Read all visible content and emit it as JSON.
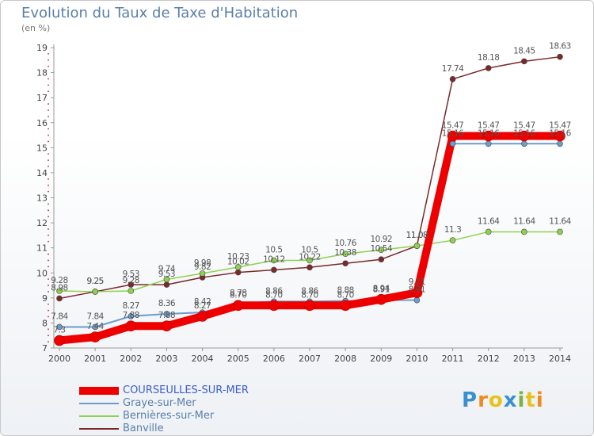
{
  "title": "Evolution du Taux de Taxe d'Habitation",
  "subtitle": "(en %)",
  "logo": {
    "text": "Proxiti",
    "letters": [
      "P",
      "r",
      "o",
      "x",
      "i",
      "t",
      "i"
    ],
    "colors": [
      "#3a8fd0",
      "#f08a1c",
      "#e8c21a",
      "#3a8fd0",
      "#7ab342",
      "#e8c21a",
      "#f08a1c"
    ]
  },
  "chart_data": {
    "type": "line",
    "x": [
      "2000",
      "2001",
      "2002",
      "2003",
      "2004",
      "2005",
      "2006",
      "2007",
      "2008",
      "2009",
      "2010",
      "2011",
      "2012",
      "2013",
      "2014"
    ],
    "ylim": [
      7,
      19
    ],
    "yticks": [
      7,
      8,
      9,
      10,
      11,
      12,
      13,
      14,
      15,
      16,
      17,
      18,
      19
    ],
    "grid": false,
    "legend_position": "bottom-left",
    "series": [
      {
        "name": "COURSEULLES-SUR-MER",
        "color": "#ee0000",
        "values": [
          7.3,
          7.44,
          7.88,
          7.88,
          8.27,
          8.7,
          8.7,
          8.7,
          8.7,
          8.94,
          9.21,
          15.47,
          15.47,
          15.47,
          15.47
        ],
        "labels": [
          "7.3",
          "7.44",
          "7.88",
          "7.88",
          "8.27",
          "8.70",
          "8.70",
          "8.70",
          "8.70",
          "8.94",
          "9.21",
          "15.47",
          "15.47",
          "15.47",
          "15.47"
        ]
      },
      {
        "name": "Graye-sur-Mer",
        "color": "#6a9dcb",
        "values": [
          7.84,
          7.84,
          8.27,
          8.36,
          8.42,
          8.78,
          8.86,
          8.86,
          8.88,
          8.91,
          8.91,
          15.16,
          15.16,
          15.16,
          15.16
        ],
        "labels": [
          "7.84",
          "7.84",
          "8.27",
          "8.36",
          "8.42",
          "8.78",
          "8.86",
          "8.86",
          "8.88",
          "8.91",
          "8.91",
          "15.16",
          "15.16",
          "15.16",
          "15.16"
        ]
      },
      {
        "name": "Bernières-sur-Mer",
        "color": "#8fd14f",
        "values": [
          9.28,
          9.25,
          9.28,
          9.74,
          9.98,
          10.23,
          10.5,
          10.5,
          10.76,
          10.92,
          11.08,
          11.3,
          11.64,
          11.64,
          11.64
        ],
        "labels": [
          "9.28",
          "9.25",
          "9.28",
          "9.74",
          "9.98",
          "10.23",
          "10.5",
          "10.5",
          "10.76",
          "10.92",
          "11.08",
          "11.3",
          "11.64",
          "11.64",
          "11.64"
        ]
      },
      {
        "name": "Banville",
        "color": "#7a2a2a",
        "values": [
          8.98,
          9.25,
          9.53,
          9.53,
          9.82,
          10.02,
          10.12,
          10.22,
          10.38,
          10.54,
          11.08,
          17.74,
          18.18,
          18.45,
          18.63
        ],
        "labels": [
          "8.98",
          "9.25",
          "9.53",
          "9.53",
          "9.82",
          "10.02",
          "10.12",
          "10.22",
          "10.38",
          "10.54",
          "11.08",
          "17.74",
          "18.18",
          "18.45",
          "18.63"
        ]
      }
    ]
  }
}
